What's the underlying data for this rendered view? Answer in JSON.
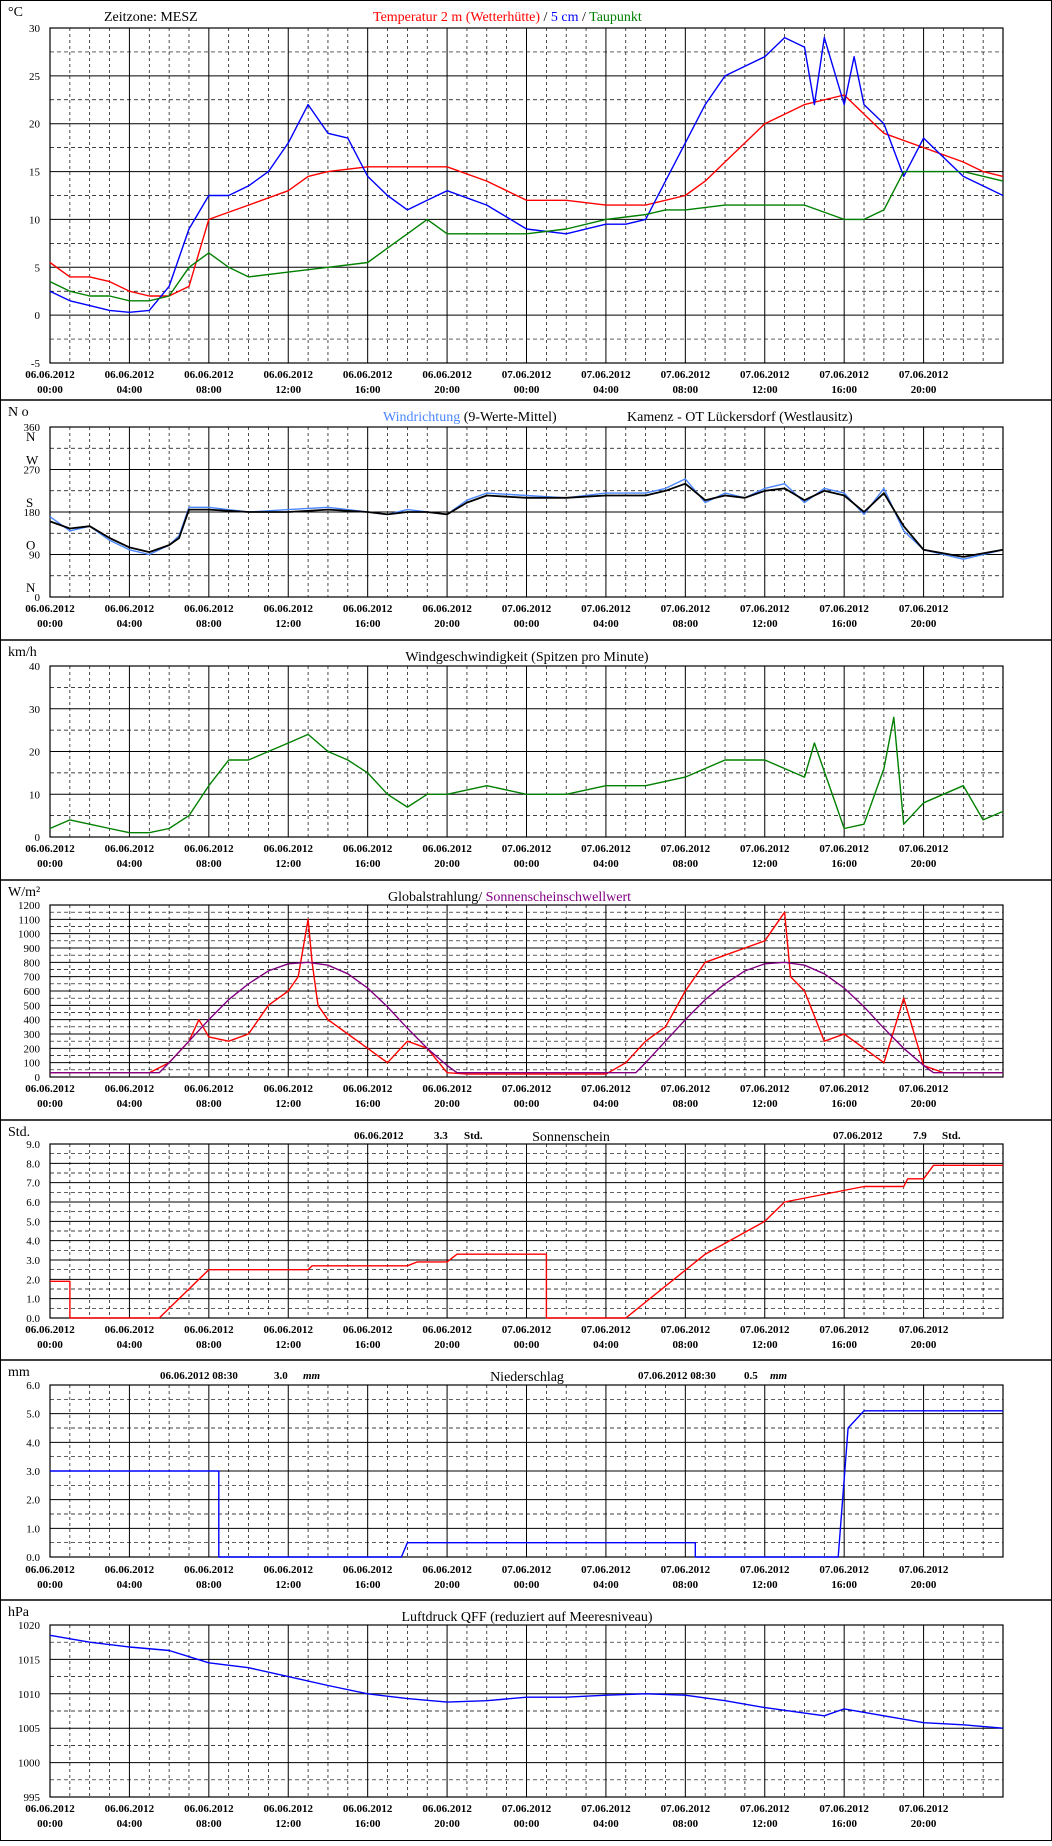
{
  "colors": {
    "red": "#ff0000",
    "blue": "#0000ff",
    "green": "#008000",
    "lightblue": "#4a86ff",
    "purple": "#800080",
    "grid": "#000000",
    "frame": "#000000",
    "background": "#ffffff"
  },
  "x_ticks": [
    {
      "date": "06.06.2012",
      "time": "00:00"
    },
    {
      "date": "06.06.2012",
      "time": "04:00"
    },
    {
      "date": "06.06.2012",
      "time": "08:00"
    },
    {
      "date": "06.06.2012",
      "time": "12:00"
    },
    {
      "date": "06.06.2012",
      "time": "16:00"
    },
    {
      "date": "06.06.2012",
      "time": "20:00"
    },
    {
      "date": "07.06.2012",
      "time": "00:00"
    },
    {
      "date": "07.06.2012",
      "time": "04:00"
    },
    {
      "date": "07.06.2012",
      "time": "08:00"
    },
    {
      "date": "07.06.2012",
      "time": "12:00"
    },
    {
      "date": "07.06.2012",
      "time": "16:00"
    },
    {
      "date": "07.06.2012",
      "time": "20:00"
    }
  ],
  "chart_data": [
    {
      "id": "temperature",
      "type": "line",
      "unit": "°C",
      "header_left": "Zeitzone: MESZ",
      "title_parts": [
        {
          "text": "Temperatur 2 m (Wetterhütte)",
          "color": "red"
        },
        {
          "text": "  /  ",
          "color": "black"
        },
        {
          "text": "5 cm",
          "color": "blue"
        },
        {
          "text": " / ",
          "color": "black"
        },
        {
          "text": "Taupunkt",
          "color": "green"
        }
      ],
      "ylim": [
        -5,
        30
      ],
      "yticks": [
        "30",
        "25",
        "20",
        "15",
        "10",
        "5",
        "0",
        "-5"
      ],
      "grid": "on",
      "series": [
        {
          "name": "Temperatur 2 m (Wetterhütte)",
          "color": "red",
          "x": [
            0,
            1,
            2,
            3,
            4,
            5,
            6,
            7,
            8,
            10,
            12,
            13,
            14,
            16,
            18,
            20,
            22,
            24,
            26,
            28,
            30,
            32,
            33,
            34,
            35,
            36,
            38,
            40,
            42,
            44,
            46,
            47,
            48
          ],
          "y": [
            5.5,
            4.0,
            4.0,
            3.5,
            2.5,
            2.0,
            2.0,
            3.0,
            10.0,
            11.5,
            13.0,
            14.5,
            15.0,
            15.5,
            15.5,
            15.5,
            14.0,
            12.0,
            12.0,
            11.5,
            11.5,
            12.5,
            14.0,
            16.0,
            18.0,
            20.0,
            22.0,
            23.0,
            19.0,
            17.5,
            16.0,
            15.0,
            14.5
          ]
        },
        {
          "name": "5 cm",
          "color": "blue",
          "x": [
            0,
            1,
            2,
            3,
            4,
            5,
            6,
            7,
            8,
            9,
            10,
            11,
            12,
            13,
            14,
            15,
            16,
            17,
            18,
            19,
            20,
            22,
            24,
            26,
            28,
            29,
            30,
            31,
            32,
            33,
            34,
            35,
            36,
            37,
            38,
            38.5,
            39,
            40,
            40.5,
            41,
            42,
            43,
            44,
            45,
            46,
            47,
            48
          ],
          "y": [
            2.5,
            1.5,
            1.0,
            0.5,
            0.3,
            0.5,
            3.0,
            9.0,
            12.5,
            12.5,
            13.5,
            15.0,
            18.0,
            22.0,
            19.0,
            18.5,
            14.5,
            12.5,
            11.0,
            12.0,
            13.0,
            11.5,
            9.0,
            8.5,
            9.5,
            9.5,
            10.0,
            14.0,
            18.0,
            22.0,
            25.0,
            26.0,
            27.0,
            29.0,
            28.0,
            22.0,
            29.0,
            22.0,
            27.0,
            22.0,
            20.0,
            14.5,
            18.5,
            16.5,
            14.5,
            13.5,
            12.5
          ]
        },
        {
          "name": "Taupunkt",
          "color": "green",
          "x": [
            0,
            1,
            2,
            3,
            4,
            5,
            6,
            7,
            8,
            9,
            10,
            12,
            14,
            16,
            17,
            18,
            19,
            20,
            22,
            24,
            26,
            28,
            30,
            31,
            32,
            34,
            36,
            38,
            40,
            41,
            42,
            43,
            44,
            46,
            48
          ],
          "y": [
            3.5,
            2.5,
            2.0,
            2.0,
            1.5,
            1.5,
            2.0,
            5.0,
            6.5,
            5.0,
            4.0,
            4.5,
            5.0,
            5.5,
            7.0,
            8.5,
            10.0,
            8.5,
            8.5,
            8.5,
            9.0,
            10.0,
            10.5,
            11.0,
            11.0,
            11.5,
            11.5,
            11.5,
            10.0,
            10.0,
            11.0,
            15.0,
            15.0,
            15.0,
            14.0
          ]
        }
      ]
    },
    {
      "id": "wind_direction",
      "type": "line",
      "unit": "N o",
      "title_parts": [
        {
          "text": "Windrichtung",
          "color": "lightblue"
        },
        {
          "text": " (9-Werte-Mittel)",
          "color": "black"
        }
      ],
      "station": "Kamenz - OT Lückersdorf (Westlausitz)",
      "ylim": [
        0,
        360
      ],
      "yticks": [
        "360",
        "270",
        "180",
        "90",
        "0"
      ],
      "compass": [
        "N",
        "W",
        "S",
        "O",
        "N"
      ],
      "grid": "on",
      "series": [
        {
          "name": "Windrichtung",
          "color": "lightblue",
          "x": [
            0,
            1,
            2,
            3,
            4,
            5,
            6,
            6.5,
            7,
            8,
            10,
            12,
            14,
            16,
            17,
            18,
            19,
            20,
            21,
            22,
            24,
            26,
            28,
            30,
            31,
            32,
            33,
            34,
            35,
            36,
            37,
            38,
            39,
            40,
            41,
            42,
            43,
            44,
            46,
            48
          ],
          "y": [
            170,
            140,
            150,
            120,
            100,
            90,
            110,
            130,
            190,
            190,
            180,
            185,
            190,
            180,
            175,
            185,
            180,
            175,
            205,
            220,
            215,
            210,
            220,
            220,
            230,
            250,
            200,
            220,
            210,
            230,
            240,
            200,
            230,
            220,
            175,
            230,
            140,
            100,
            80,
            100
          ]
        },
        {
          "name": "9-Werte-Mittel",
          "color": "black",
          "x": [
            0,
            1,
            2,
            3,
            4,
            5,
            6,
            6.5,
            7,
            8,
            10,
            12,
            14,
            16,
            17,
            18,
            19,
            20,
            21,
            22,
            24,
            26,
            28,
            30,
            31,
            32,
            33,
            34,
            35,
            36,
            37,
            38,
            39,
            40,
            41,
            42,
            43,
            44,
            46,
            48
          ],
          "y": [
            160,
            145,
            150,
            125,
            105,
            95,
            110,
            125,
            185,
            185,
            180,
            180,
            185,
            180,
            175,
            180,
            180,
            175,
            200,
            215,
            210,
            210,
            215,
            215,
            225,
            240,
            205,
            215,
            210,
            225,
            230,
            205,
            225,
            215,
            180,
            220,
            150,
            100,
            85,
            100
          ]
        }
      ]
    },
    {
      "id": "wind_speed",
      "type": "line",
      "unit": "km/h",
      "title": "Windgeschwindigkeit (Spitzen pro Minute)",
      "ylim": [
        0,
        40
      ],
      "yticks": [
        "40",
        "30",
        "20",
        "10",
        "0"
      ],
      "grid": "on",
      "series": [
        {
          "name": "Windgeschwindigkeit",
          "color": "green",
          "x": [
            0,
            1,
            2,
            3,
            4,
            5,
            6,
            7,
            8,
            9,
            10,
            11,
            12,
            13,
            14,
            15,
            16,
            17,
            18,
            19,
            20,
            22,
            24,
            26,
            28,
            30,
            32,
            34,
            36,
            38,
            38.5,
            40,
            41,
            42,
            42.5,
            43,
            44,
            46,
            47,
            48
          ],
          "y": [
            2,
            4,
            3,
            2,
            1,
            1,
            2,
            5,
            12,
            18,
            18,
            20,
            22,
            24,
            20,
            18,
            15,
            10,
            7,
            10,
            10,
            12,
            10,
            10,
            12,
            12,
            14,
            18,
            18,
            14,
            22,
            2,
            3,
            16,
            28,
            3,
            8,
            12,
            4,
            6
          ]
        }
      ]
    },
    {
      "id": "global_radiation",
      "type": "line",
      "unit": "W/m²",
      "title_parts": [
        {
          "text": "Globalstrahlung/ ",
          "color": "black"
        },
        {
          "text": "Sonnenscheinschwellwert",
          "color": "purple"
        }
      ],
      "ylim": [
        0,
        1200
      ],
      "yticks": [
        "1200",
        "1100",
        "1000",
        "900",
        "800",
        "700",
        "600",
        "500",
        "400",
        "300",
        "200",
        "100",
        "0"
      ],
      "grid": "on",
      "series": [
        {
          "name": "Globalstrahlung",
          "color": "red",
          "x": [
            0,
            5,
            6,
            7,
            7.5,
            8,
            9,
            10,
            11,
            12,
            12.5,
            13,
            13.2,
            13.5,
            14,
            15,
            16,
            17,
            18,
            19,
            20,
            21,
            28,
            29,
            30,
            31,
            32,
            33,
            34,
            35,
            36,
            37,
            37.3,
            38,
            39,
            40,
            41,
            42,
            43,
            44,
            45,
            46,
            47,
            48
          ],
          "y": [
            30,
            30,
            100,
            250,
            400,
            280,
            250,
            300,
            500,
            600,
            700,
            1100,
            800,
            500,
            400,
            300,
            200,
            100,
            250,
            200,
            30,
            20,
            20,
            100,
            250,
            350,
            600,
            800,
            850,
            900,
            950,
            1150,
            700,
            600,
            250,
            300,
            200,
            100,
            550,
            80,
            30,
            30,
            30,
            30
          ]
        },
        {
          "name": "Sonnenscheinschwellwert",
          "color": "purple",
          "x": [
            0,
            5.5,
            6,
            7,
            8,
            9,
            10,
            11,
            12,
            13,
            14,
            15,
            16,
            17,
            18,
            19,
            20,
            20.5,
            29.5,
            30,
            31,
            32,
            33,
            34,
            35,
            36,
            37,
            38,
            39,
            40,
            41,
            42,
            43,
            44,
            44.5,
            48
          ],
          "y": [
            30,
            30,
            100,
            250,
            400,
            540,
            650,
            740,
            790,
            800,
            780,
            720,
            620,
            490,
            340,
            200,
            80,
            30,
            30,
            100,
            250,
            400,
            540,
            650,
            740,
            790,
            800,
            780,
            720,
            620,
            490,
            340,
            200,
            80,
            30,
            30
          ]
        }
      ]
    },
    {
      "id": "sunshine",
      "type": "line",
      "unit": "Std.",
      "title": "Sonnenschein",
      "annotations": [
        {
          "date": "06.06.2012",
          "value": "3.3",
          "unit": "Std."
        },
        {
          "date": "07.06.2012",
          "value": "7.9",
          "unit": "Std."
        }
      ],
      "ylim": [
        0,
        9
      ],
      "yticks": [
        "9.0",
        "8.0",
        "7.0",
        "6.0",
        "5.0",
        "4.0",
        "3.0",
        "2.0",
        "1.0",
        "0.0"
      ],
      "grid": "on",
      "series": [
        {
          "name": "Sonnenschein",
          "color": "red",
          "x": [
            0,
            1,
            1,
            5.5,
            8,
            13,
            13.2,
            18,
            18.5,
            20,
            20.5,
            25,
            25,
            29,
            33,
            36,
            37,
            41,
            41.2,
            43,
            43.2,
            44,
            44.5,
            48
          ],
          "y": [
            1.9,
            1.9,
            0,
            0,
            2.5,
            2.5,
            2.7,
            2.7,
            2.9,
            2.9,
            3.3,
            3.3,
            0,
            0,
            3.3,
            5.0,
            6.0,
            6.8,
            6.8,
            6.8,
            7.2,
            7.2,
            7.9,
            7.9
          ]
        }
      ]
    },
    {
      "id": "precipitation",
      "type": "line",
      "unit": "mm",
      "title": "Niederschlag",
      "annotations": [
        {
          "date": "06.06.2012 08:30",
          "value": "3.0",
          "unit": "mm"
        },
        {
          "date": "07.06.2012 08:30",
          "value": "0.5",
          "unit": "mm"
        }
      ],
      "ylim": [
        0,
        6
      ],
      "yticks": [
        "6.0",
        "5.0",
        "4.0",
        "3.0",
        "2.0",
        "1.0",
        "0.0"
      ],
      "grid": "on",
      "series": [
        {
          "name": "Niederschlag",
          "color": "blue",
          "x": [
            0,
            8.5,
            8.5,
            17.7,
            18,
            32.5,
            32.5,
            39.7,
            40.2,
            41,
            48
          ],
          "y": [
            3.0,
            3.0,
            0.0,
            0.0,
            0.5,
            0.5,
            0.0,
            0.0,
            4.5,
            5.1,
            5.1
          ]
        }
      ]
    },
    {
      "id": "pressure",
      "type": "line",
      "unit": "hPa",
      "title": "Luftdruck QFF (reduziert auf Meeresniveau)",
      "ylim": [
        995,
        1020
      ],
      "yticks": [
        "1020",
        "1015",
        "1010",
        "1005",
        "1000",
        "995"
      ],
      "grid": "on",
      "series": [
        {
          "name": "Luftdruck QFF",
          "color": "blue",
          "x": [
            0,
            2,
            4,
            6,
            8,
            10,
            12,
            14,
            16,
            18,
            20,
            22,
            24,
            26,
            28,
            30,
            32,
            34,
            36,
            38,
            39,
            40,
            42,
            44,
            46,
            48
          ],
          "y": [
            1018.5,
            1017.5,
            1016.8,
            1016.3,
            1014.5,
            1013.8,
            1012.5,
            1011.2,
            1010.0,
            1009.3,
            1008.8,
            1009.0,
            1009.5,
            1009.5,
            1009.8,
            1010.0,
            1009.8,
            1009.0,
            1008.0,
            1007.2,
            1006.8,
            1007.8,
            1006.8,
            1005.8,
            1005.5,
            1005.0
          ]
        }
      ]
    }
  ]
}
